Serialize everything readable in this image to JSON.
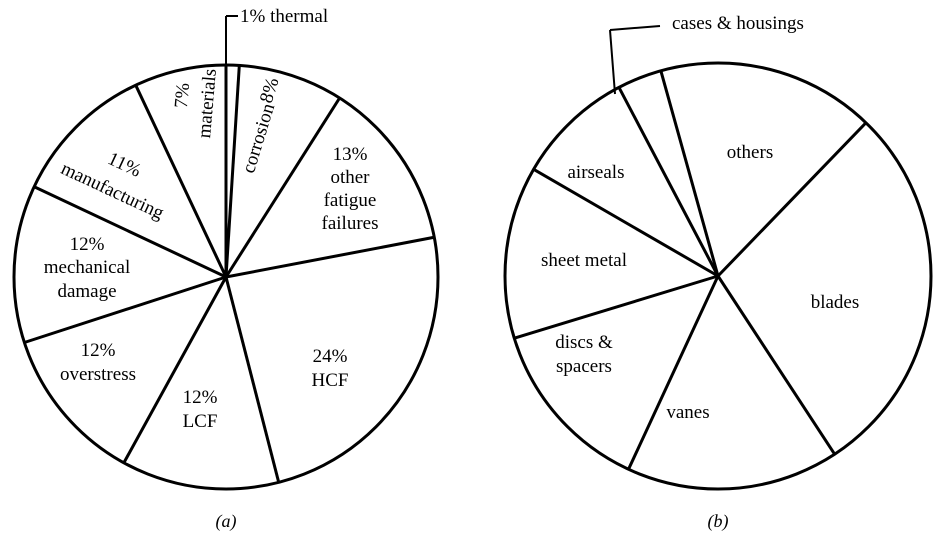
{
  "chart_data": [
    {
      "type": "pie",
      "caption": "(a)",
      "slices": [
        {
          "label": "1% thermal",
          "value": 1
        },
        {
          "label": "8% corrosion",
          "value": 8
        },
        {
          "label": "13% other fatigue failures",
          "value": 13
        },
        {
          "label": "24% HCF",
          "value": 24
        },
        {
          "label": "12% LCF",
          "value": 12
        },
        {
          "label": "12% overstress",
          "value": 12
        },
        {
          "label": "12% mechanical damage",
          "value": 12
        },
        {
          "label": "11% manufacturing",
          "value": 11
        },
        {
          "label": "7% materials",
          "value": 7
        }
      ],
      "label_lines": {
        "thermal": [
          "1% thermal"
        ],
        "corrosion": [
          "8%",
          "corrosion"
        ],
        "other_fatigue": [
          "13%",
          "other",
          "fatigue",
          "failures"
        ],
        "hcf": [
          "24%",
          "HCF"
        ],
        "lcf": [
          "12%",
          "LCF"
        ],
        "overstress": [
          "12%",
          "overstress"
        ],
        "mechanical": [
          "12%",
          "mechanical",
          "damage"
        ],
        "manufacturing": [
          "11%",
          "manufacturing"
        ],
        "materials": [
          "7%",
          "materials"
        ]
      }
    },
    {
      "type": "pie",
      "caption": "(b)",
      "slices": [
        {
          "label": "cases & housings",
          "value": 3.2
        },
        {
          "label": "others",
          "value": 15.7
        },
        {
          "label": "blades",
          "value": 27.1
        },
        {
          "label": "vanes",
          "value": 15.3
        },
        {
          "label": "discs & spacers",
          "value": 12.7
        },
        {
          "label": "sheet metal",
          "value": 12.4
        },
        {
          "label": "airseals",
          "value": 8.5
        }
      ],
      "label_lines": {
        "cases": [
          "cases & housings"
        ],
        "others": [
          "others"
        ],
        "blades": [
          "blades"
        ],
        "vanes": [
          "vanes"
        ],
        "discs": [
          "discs &",
          "spacers"
        ],
        "sheet": [
          "sheet metal"
        ],
        "airseals": [
          "airseals"
        ]
      }
    }
  ]
}
